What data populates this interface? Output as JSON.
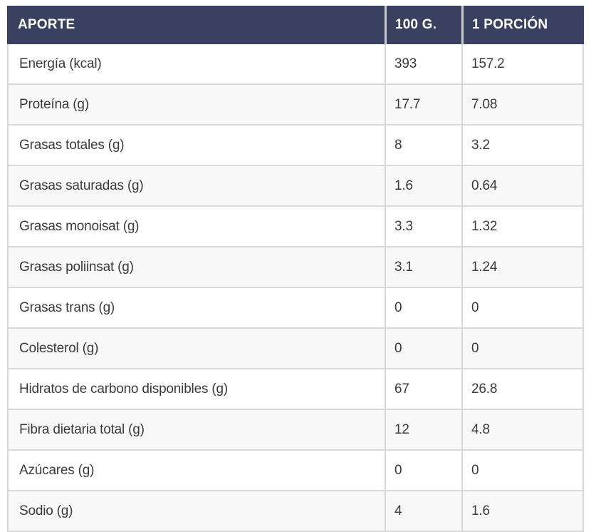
{
  "table": {
    "columns": [
      "APORTE",
      "100 G.",
      "1 PORCIÓN"
    ],
    "rows": [
      {
        "label": "Energía (kcal)",
        "per_100g": "393",
        "per_porcion": "157.2"
      },
      {
        "label": "Proteína (g)",
        "per_100g": "17.7",
        "per_porcion": "7.08"
      },
      {
        "label": "Grasas totales (g)",
        "per_100g": "8",
        "per_porcion": "3.2"
      },
      {
        "label": "Grasas saturadas (g)",
        "per_100g": "1.6",
        "per_porcion": "0.64"
      },
      {
        "label": "Grasas monoisat (g)",
        "per_100g": "3.3",
        "per_porcion": "1.32"
      },
      {
        "label": "Grasas poliinsat (g)",
        "per_100g": "3.1",
        "per_porcion": "1.24"
      },
      {
        "label": "Grasas trans (g)",
        "per_100g": "0",
        "per_porcion": "0"
      },
      {
        "label": "Colesterol (g)",
        "per_100g": "0",
        "per_porcion": "0"
      },
      {
        "label": "Hidratos de carbono disponibles (g)",
        "per_100g": "67",
        "per_porcion": "26.8"
      },
      {
        "label": "Fibra dietaria total (g)",
        "per_100g": "12",
        "per_porcion": "4.8"
      },
      {
        "label": "Azúcares (g)",
        "per_100g": "0",
        "per_porcion": "0"
      },
      {
        "label": "Sodio (g)",
        "per_100g": "4",
        "per_porcion": "1.6"
      }
    ]
  },
  "colors": {
    "header_bg": "#3a4160",
    "header_text": "#ffffff",
    "row_bg": "#ffffff",
    "row_alt_bg": "#f8f8f8",
    "border": "#d9d9d9",
    "body_text": "#3b3b3b"
  },
  "chart_data": {
    "type": "table",
    "title": "APORTE",
    "columns": [
      "APORTE",
      "100 G.",
      "1 PORCIÓN"
    ],
    "rows": [
      [
        "Energía (kcal)",
        393,
        157.2
      ],
      [
        "Proteína (g)",
        17.7,
        7.08
      ],
      [
        "Grasas totales (g)",
        8,
        3.2
      ],
      [
        "Grasas saturadas (g)",
        1.6,
        0.64
      ],
      [
        "Grasas monoisat (g)",
        3.3,
        1.32
      ],
      [
        "Grasas poliinsat (g)",
        3.1,
        1.24
      ],
      [
        "Grasas trans (g)",
        0,
        0
      ],
      [
        "Colesterol (g)",
        0,
        0
      ],
      [
        "Hidratos de carbono disponibles (g)",
        67,
        26.8
      ],
      [
        "Fibra dietaria total (g)",
        12,
        4.8
      ],
      [
        "Azúcares (g)",
        0,
        0
      ],
      [
        "Sodio (g)",
        4,
        1.6
      ]
    ]
  }
}
